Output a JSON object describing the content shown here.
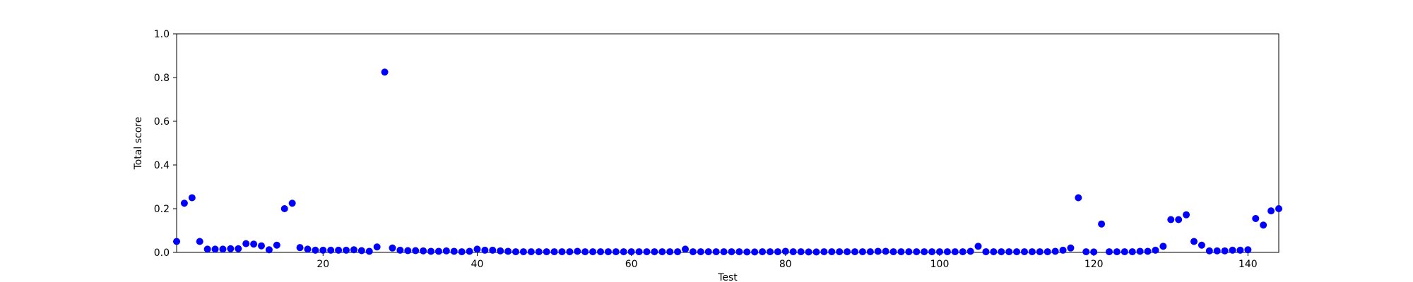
{
  "chart_data": {
    "type": "scatter",
    "title": "",
    "xlabel": "Test",
    "ylabel": "Total score",
    "xlim": [
      1,
      144
    ],
    "ylim": [
      0.0,
      1.0
    ],
    "x_ticks": [
      20,
      40,
      60,
      80,
      100,
      120,
      140
    ],
    "y_ticks": [
      0.0,
      0.2,
      0.4,
      0.6,
      0.8,
      1.0
    ],
    "x_tick_labels": [
      "20",
      "40",
      "60",
      "80",
      "100",
      "120",
      "140"
    ],
    "y_tick_labels": [
      "0.0",
      "0.2",
      "0.4",
      "0.6",
      "0.8",
      "1.0"
    ],
    "grid": false,
    "marker_color": "#0000ff",
    "series": [
      {
        "x": [
          1,
          2,
          3,
          4,
          5,
          6,
          7,
          8,
          9,
          10,
          11,
          12,
          13,
          14,
          15,
          16,
          17,
          18,
          19,
          20,
          21,
          22,
          23,
          24,
          25,
          26,
          27,
          28,
          29,
          30,
          31,
          32,
          33,
          34,
          35,
          36,
          37,
          38,
          39,
          40,
          41,
          42,
          43,
          44,
          45,
          46,
          47,
          48,
          49,
          50,
          51,
          52,
          53,
          54,
          55,
          56,
          57,
          58,
          59,
          60,
          61,
          62,
          63,
          64,
          65,
          66,
          67,
          68,
          69,
          70,
          71,
          72,
          73,
          74,
          75,
          76,
          77,
          78,
          79,
          80,
          81,
          82,
          83,
          84,
          85,
          86,
          87,
          88,
          89,
          90,
          91,
          92,
          93,
          94,
          95,
          96,
          97,
          98,
          99,
          100,
          101,
          102,
          103,
          104,
          105,
          106,
          107,
          108,
          109,
          110,
          111,
          112,
          113,
          114,
          115,
          116,
          117,
          118,
          119,
          120,
          121,
          122,
          123,
          124,
          125,
          126,
          127,
          128,
          129,
          130,
          131,
          132,
          133,
          134,
          135,
          136,
          137,
          138,
          139,
          140,
          141,
          142,
          143,
          144
        ],
        "y": [
          0.05,
          0.225,
          0.25,
          0.05,
          0.015,
          0.015,
          0.015,
          0.017,
          0.017,
          0.04,
          0.038,
          0.03,
          0.012,
          0.033,
          0.2,
          0.225,
          0.022,
          0.015,
          0.01,
          0.01,
          0.01,
          0.01,
          0.01,
          0.012,
          0.008,
          0.005,
          0.025,
          0.825,
          0.02,
          0.01,
          0.008,
          0.008,
          0.007,
          0.005,
          0.005,
          0.007,
          0.005,
          0.003,
          0.005,
          0.015,
          0.01,
          0.01,
          0.007,
          0.005,
          0.003,
          0.003,
          0.003,
          0.003,
          0.003,
          0.003,
          0.003,
          0.003,
          0.005,
          0.003,
          0.003,
          0.003,
          0.003,
          0.003,
          0.003,
          0.003,
          0.003,
          0.003,
          0.003,
          0.003,
          0.003,
          0.003,
          0.015,
          0.003,
          0.003,
          0.003,
          0.003,
          0.003,
          0.003,
          0.003,
          0.002,
          0.002,
          0.003,
          0.003,
          0.003,
          0.005,
          0.003,
          0.003,
          0.002,
          0.002,
          0.003,
          0.003,
          0.003,
          0.003,
          0.003,
          0.003,
          0.003,
          0.005,
          0.005,
          0.003,
          0.003,
          0.003,
          0.003,
          0.003,
          0.003,
          0.003,
          0.003,
          0.003,
          0.003,
          0.005,
          0.028,
          0.003,
          0.003,
          0.003,
          0.003,
          0.003,
          0.003,
          0.003,
          0.003,
          0.003,
          0.005,
          0.01,
          0.02,
          0.25,
          0.003,
          0.002,
          0.13,
          0.003,
          0.003,
          0.003,
          0.003,
          0.005,
          0.005,
          0.01,
          0.028,
          0.15,
          0.15,
          0.172,
          0.05,
          0.033,
          0.007,
          0.007,
          0.007,
          0.01,
          0.01,
          0.012,
          0.155,
          0.125,
          0.19,
          0.2
        ]
      }
    ]
  }
}
